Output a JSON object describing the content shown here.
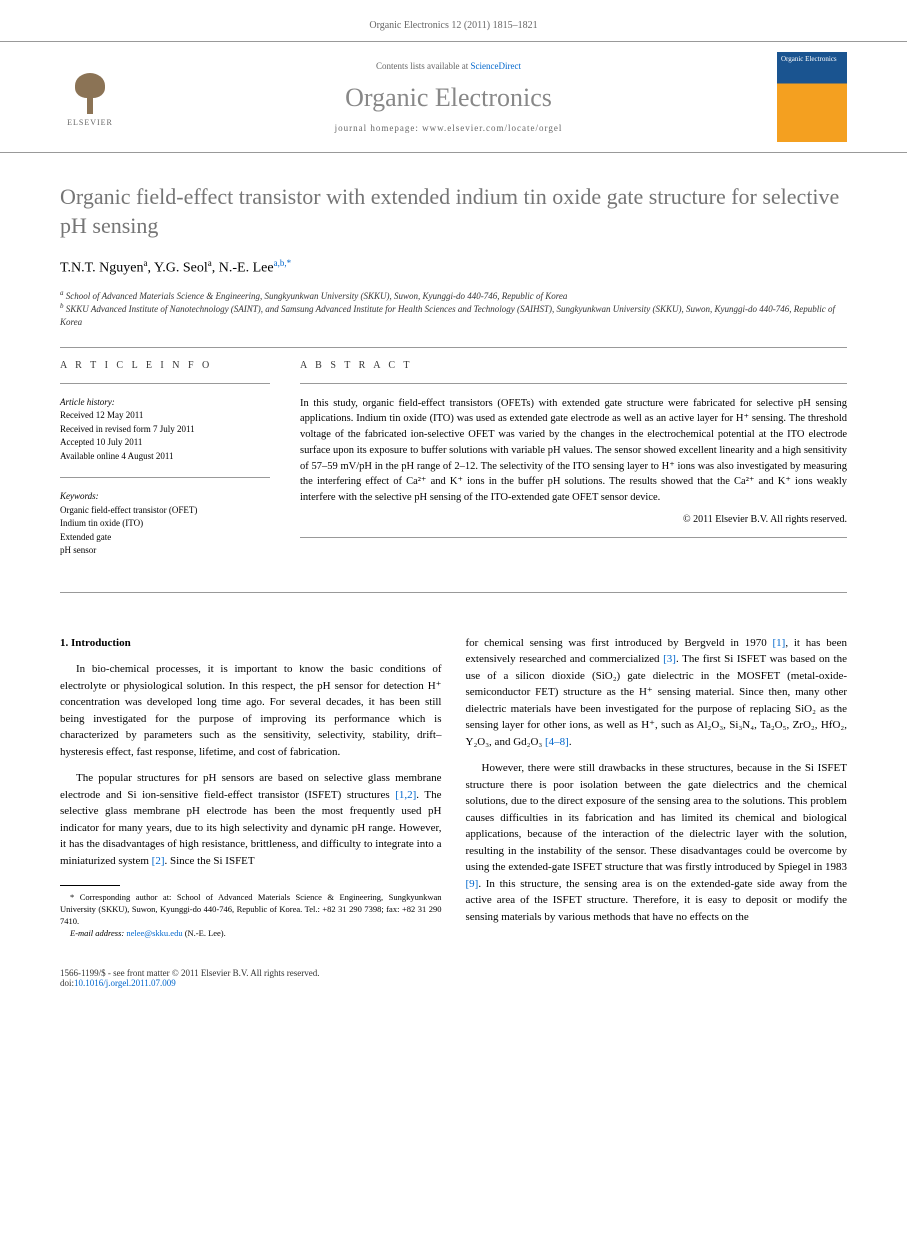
{
  "header": {
    "citation": "Organic Electronics 12 (2011) 1815–1821",
    "contents_prefix": "Contents lists available at ",
    "contents_link": "ScienceDirect",
    "journal_title": "Organic Electronics",
    "homepage_prefix": "journal homepage: ",
    "homepage_url": "www.elsevier.com/locate/orgel",
    "elsevier_label": "ELSEVIER",
    "cover_title": "Organic Electronics"
  },
  "article": {
    "title": "Organic field-effect transistor with extended indium tin oxide gate structure for selective pH sensing",
    "authors_html": "T.N.T. Nguyen<sup>a</sup>, Y.G. Seol<sup>a</sup>, N.-E. Lee<sup class='corr'>a,b,*</sup>",
    "affiliations": {
      "a": "School of Advanced Materials Science & Engineering, Sungkyunkwan University (SKKU), Suwon, Kyunggi-do 440-746, Republic of Korea",
      "b": "SKKU Advanced Institute of Nanotechnology (SAINT), and Samsung Advanced Institute for Health Sciences and Technology (SAIHST), Sungkyunkwan University (SKKU), Suwon, Kyunggi-do 440-746, Republic of Korea"
    }
  },
  "info": {
    "heading": "A R T I C L E   I N F O",
    "history_label": "Article history:",
    "received": "Received 12 May 2011",
    "revised": "Received in revised form 7 July 2011",
    "accepted": "Accepted 10 July 2011",
    "online": "Available online 4 August 2011",
    "keywords_label": "Keywords:",
    "keywords": [
      "Organic field-effect transistor (OFET)",
      "Indium tin oxide (ITO)",
      "Extended gate",
      "pH sensor"
    ]
  },
  "abstract": {
    "heading": "A B S T R A C T",
    "text": "In this study, organic field-effect transistors (OFETs) with extended gate structure were fabricated for selective pH sensing applications. Indium tin oxide (ITO) was used as extended gate electrode as well as an active layer for H⁺ sensing. The threshold voltage of the fabricated ion-selective OFET was varied by the changes in the electrochemical potential at the ITO electrode surface upon its exposure to buffer solutions with variable pH values. The sensor showed excellent linearity and a high sensitivity of 57–59 mV/pH in the pH range of 2–12. The selectivity of the ITO sensing layer to H⁺ ions was also investigated by measuring the interfering effect of Ca²⁺ and K⁺ ions in the buffer pH solutions. The results showed that the Ca²⁺ and K⁺ ions weakly interfere with the selective pH sensing of the ITO-extended gate OFET sensor device.",
    "copyright": "© 2011 Elsevier B.V. All rights reserved."
  },
  "body": {
    "section_1_heading": "1. Introduction",
    "para1": "In bio-chemical processes, it is important to know the basic conditions of electrolyte or physiological solution. In this respect, the pH sensor for detection H⁺ concentration was developed long time ago. For several decades, it has been still being investigated for the purpose of improving its performance which is characterized by parameters such as the sensitivity, selectivity, stability, drift–hysteresis effect, fast response, lifetime, and cost of fabrication.",
    "para2_a": "The popular structures for pH sensors are based on selective glass membrane electrode and Si ion-sensitive field-effect transistor (ISFET) structures ",
    "para2_ref1": "[1,2]",
    "para2_b": ". The selective glass membrane pH electrode has been the most frequently used pH indicator for many years, due to its high selectivity and dynamic pH range. However, it has the disadvantages of high resistance, brittleness, and difficulty to integrate into a miniaturized system ",
    "para2_ref2": "[2]",
    "para2_c": ". Since the Si ISFET",
    "para3_a": "for chemical sensing was first introduced by Bergveld in 1970 ",
    "para3_ref1": "[1]",
    "para3_b": ", it has been extensively researched and commercialized ",
    "para3_ref2": "[3]",
    "para3_c": ". The first Si ISFET was based on the use of a silicon dioxide (SiO₂) gate dielectric in the MOSFET (metal-oxide-semiconductor FET) structure as the H⁺ sensing material. Since then, many other dielectric materials have been investigated for the purpose of replacing SiO₂ as the sensing layer for other ions, as well as H⁺, such as Al₂O₃, Si₃N₄, Ta₂O₅, ZrO₂, HfO₂, Y₂O₃, and Gd₂O₃ ",
    "para3_ref3": "[4–8]",
    "para3_d": ".",
    "para4_a": "However, there were still drawbacks in these structures, because in the Si ISFET structure there is poor isolation between the gate dielectrics and the chemical solutions, due to the direct exposure of the sensing area to the solutions. This problem causes difficulties in its fabrication and has limited its chemical and biological applications, because of the interaction of the dielectric layer with the solution, resulting in the instability of the sensor. These disadvantages could be overcome by using the extended-gate ISFET structure that was firstly introduced by Spiegel in 1983 ",
    "para4_ref1": "[9]",
    "para4_b": ". In this structure, the sensing area is on the extended-gate side away from the active area of the ISFET structure. Therefore, it is easy to deposit or modify the sensing materials by various methods that have no effects on the"
  },
  "footnote": {
    "corr_label": "* Corresponding author at: School of Advanced Materials Science & Engineering, Sungkyunkwan University (SKKU), Suwon, Kyunggi-do 440-746, Republic of Korea. Tel.: +82 31 290 7398; fax: +82 31 290 7410.",
    "email_label": "E-mail address:",
    "email": "nelee@skku.edu",
    "email_name": " (N.-E. Lee)."
  },
  "footer": {
    "issn": "1566-1199/$ - see front matter © 2011 Elsevier B.V. All rights reserved.",
    "doi_label": "doi:",
    "doi": "10.1016/j.orgel.2011.07.009"
  },
  "colors": {
    "link": "#0066cc",
    "title_gray": "#757575",
    "header_gray": "#888888",
    "text": "#000000",
    "muted": "#666666",
    "elsevier_brown": "#8b7355",
    "cover_blue": "#1a5490",
    "cover_orange": "#f4a020"
  }
}
